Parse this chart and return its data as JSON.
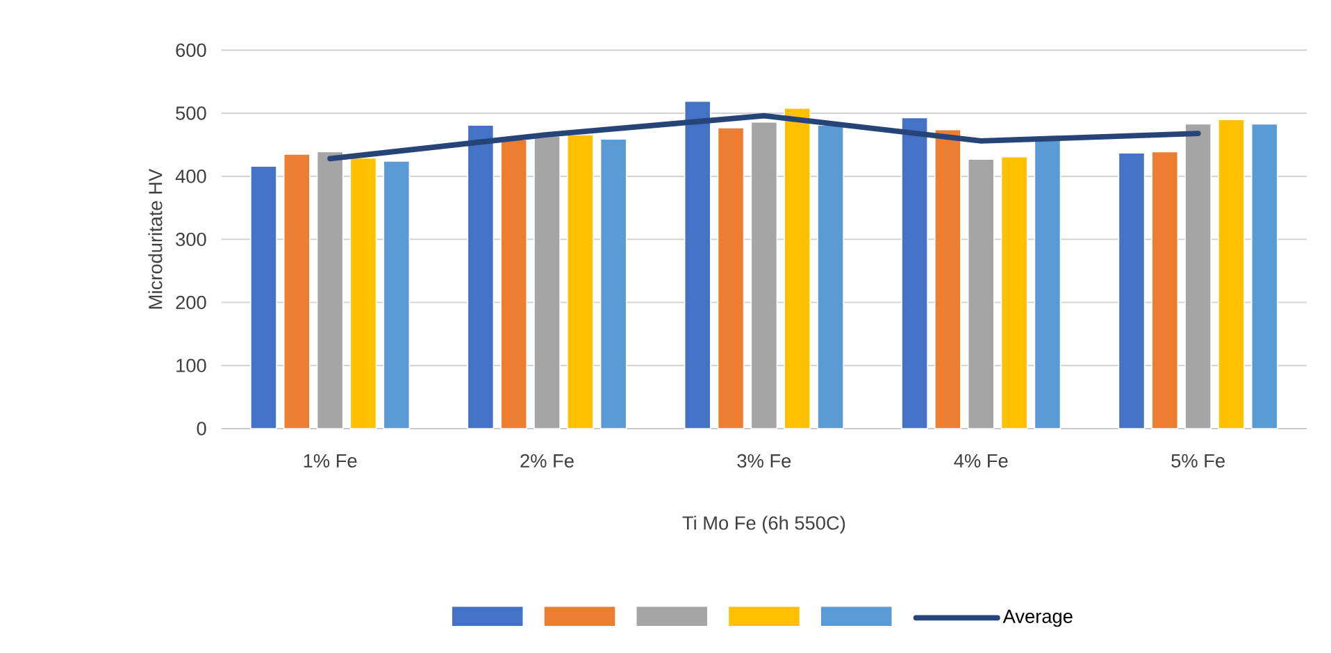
{
  "chart_data": {
    "type": "bar",
    "xlabel": "Ti Mo Fe (6h 550C)",
    "ylabel": "Microduritate HV",
    "categories": [
      "1% Fe",
      "2% Fe",
      "3% Fe",
      "4% Fe",
      "5% Fe"
    ],
    "series": [
      {
        "color": "#4472c4",
        "values": [
          416,
          481,
          519,
          493,
          437
        ]
      },
      {
        "color": "#ed7d31",
        "values": [
          435,
          458,
          477,
          474,
          439
        ]
      },
      {
        "color": "#a5a5a5",
        "values": [
          439,
          464,
          486,
          427,
          483
        ]
      },
      {
        "color": "#ffc000",
        "values": [
          429,
          466,
          508,
          431,
          490
        ]
      },
      {
        "color": "#5b9bd5",
        "values": [
          424,
          459,
          481,
          457,
          483
        ]
      },
      {
        "name": "Average",
        "type": "line",
        "color": "#264478",
        "values": [
          428,
          466,
          496,
          456,
          468
        ]
      }
    ],
    "ylim": [
      0,
      600
    ],
    "yticks": [
      0,
      100,
      200,
      300,
      400,
      500,
      600
    ],
    "grid": "y",
    "legend": "bottom"
  }
}
